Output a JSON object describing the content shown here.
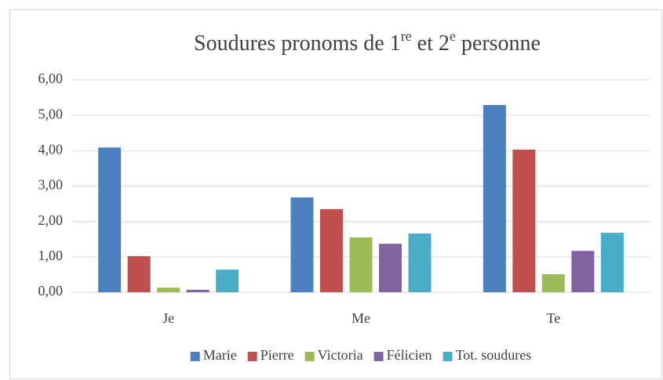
{
  "chart_data": {
    "type": "bar",
    "title": [
      {
        "text": "Soudures pronoms de 1"
      },
      {
        "text": "re",
        "superscript": true
      },
      {
        "text": " et 2"
      },
      {
        "text": "e",
        "superscript": true
      },
      {
        "text": " personne"
      }
    ],
    "categories": [
      "Je",
      "Me",
      "Te"
    ],
    "series": [
      {
        "name": "Marie",
        "color": "#4e7fc1",
        "values": [
          4.09,
          2.68,
          5.29
        ]
      },
      {
        "name": "Pierre",
        "color": "#c0504d",
        "values": [
          1.02,
          2.35,
          4.03
        ]
      },
      {
        "name": "Victoria",
        "color": "#9bbb59",
        "values": [
          0.13,
          1.55,
          0.51
        ]
      },
      {
        "name": "Félicien",
        "color": "#8064a2",
        "values": [
          0.07,
          1.37,
          1.17
        ]
      },
      {
        "name": "Tot. soudures",
        "color": "#4bacc6",
        "values": [
          0.64,
          1.66,
          1.68
        ]
      }
    ],
    "ylim": [
      0,
      6
    ],
    "yticks": [
      {
        "value": 0,
        "label": "0,00"
      },
      {
        "value": 1,
        "label": "1,00"
      },
      {
        "value": 2,
        "label": "2,00"
      },
      {
        "value": 3,
        "label": "3,00"
      },
      {
        "value": 4,
        "label": "4,00"
      },
      {
        "value": 5,
        "label": "5,00"
      },
      {
        "value": 6,
        "label": "6,00"
      }
    ],
    "grid": true,
    "legend": "bottom"
  }
}
